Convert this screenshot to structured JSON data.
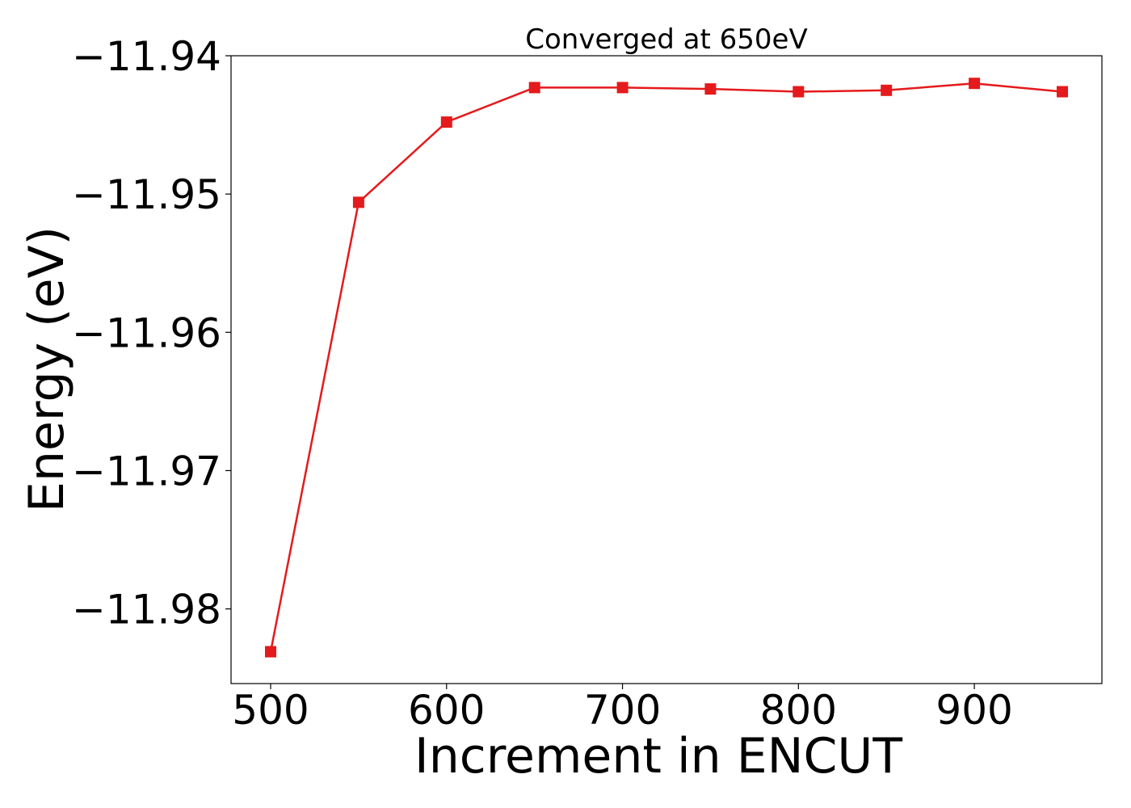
{
  "chart_data": {
    "type": "line",
    "title": "Converged at 650eV",
    "xlabel": "Increment in ENCUT",
    "ylabel": "Energy (eV)",
    "x": [
      500,
      550,
      600,
      650,
      700,
      750,
      800,
      850,
      900,
      950
    ],
    "series": [
      {
        "marker": "square",
        "color": "#e41a1c",
        "values": [
          -11.9831,
          -11.9506,
          -11.9448,
          -11.9423,
          -11.9423,
          -11.9424,
          -11.9426,
          -11.9425,
          -11.942,
          -11.9426
        ]
      }
    ],
    "xlim": [
      477.5,
      972.5
    ],
    "ylim": [
      -11.9854,
      -11.94
    ],
    "xticks": [
      500,
      600,
      700,
      800,
      900
    ],
    "xtick_labels": [
      "500",
      "600",
      "700",
      "800",
      "900"
    ],
    "yticks": [
      -11.94,
      -11.95,
      -11.96,
      -11.97,
      -11.98
    ],
    "ytick_labels": [
      "−11.94",
      "−11.95",
      "−11.96",
      "−11.97",
      "−11.98"
    ],
    "grid": false,
    "legend": "none"
  }
}
